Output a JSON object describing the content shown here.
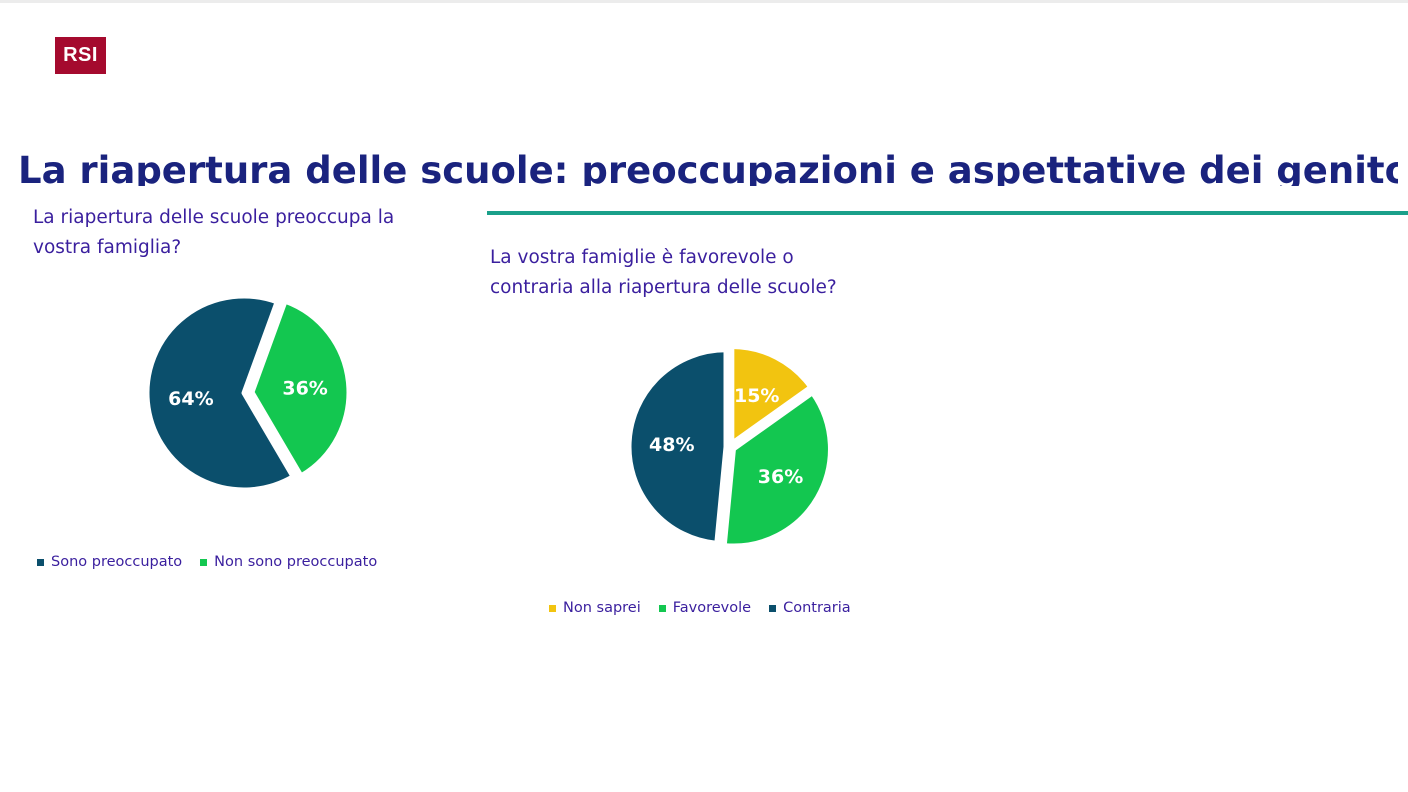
{
  "logo": {
    "text": "RSI",
    "color": "#a50a2e"
  },
  "title": "La riapertura delle scuole: preoccupazioni e aspettative dei genitori",
  "chart_data": [
    {
      "type": "pie",
      "title": "La riapertura delle scuole preoccupa la vostra famiglia?",
      "slices": [
        {
          "label": "Sono preoccupato",
          "value": 64,
          "display": "64%",
          "color": "#0b4f6c"
        },
        {
          "label": "Non sono preoccupato",
          "value": 36,
          "display": "36%",
          "color": "#13c750"
        }
      ],
      "legend": "bottom"
    },
    {
      "type": "pie",
      "title": "La vostra famiglie è favorevole o contraria alla riapertura delle scuole?",
      "slices": [
        {
          "label": "Non saprei",
          "value": 15,
          "display": "15%",
          "color": "#f2c410"
        },
        {
          "label": "Favorevole",
          "value": 36,
          "display": "36%",
          "color": "#13c750"
        },
        {
          "label": "Contraria",
          "value": 48,
          "display": "48%",
          "color": "#0b4f6c"
        }
      ],
      "legend": "bottom"
    }
  ]
}
